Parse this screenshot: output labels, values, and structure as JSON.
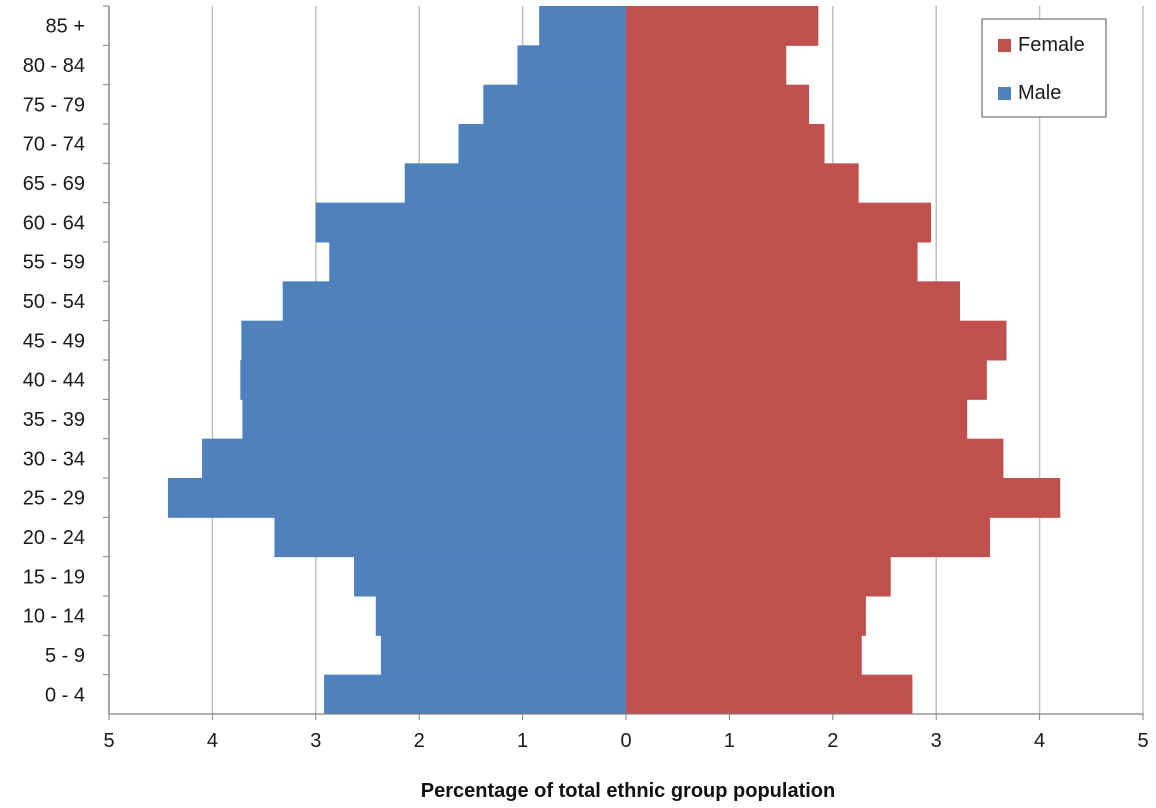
{
  "chart_data": {
    "type": "bar",
    "orientation": "horizontal",
    "title": "",
    "xlabel": "Percentage of total ethnic group population",
    "ylabel": "",
    "xlim": [
      -5,
      5
    ],
    "x_ticks": [
      -5,
      -4,
      -3,
      -2,
      -1,
      0,
      1,
      2,
      3,
      4,
      5
    ],
    "x_tick_labels": [
      "5",
      "4",
      "3",
      "2",
      "1",
      "0",
      "1",
      "2",
      "3",
      "4",
      "5"
    ],
    "grid": {
      "vertical": true,
      "horizontal": false
    },
    "legend_position": "top-right",
    "categories": [
      "0 - 4",
      "5 - 9",
      "10 - 14",
      "15 - 19",
      "20 - 24",
      "25 - 29",
      "30 - 34",
      "35 - 39",
      "40 - 44",
      "45 - 49",
      "50 - 54",
      "55 - 59",
      "60 - 64",
      "65 - 69",
      "70 - 74",
      "75 - 79",
      "80 - 84",
      "85 +"
    ],
    "series": [
      {
        "name": "Female",
        "color": "#C0504D",
        "values": [
          2.77,
          2.28,
          2.32,
          2.56,
          3.52,
          4.2,
          3.65,
          3.3,
          3.49,
          3.68,
          3.23,
          2.82,
          2.95,
          2.25,
          1.92,
          1.77,
          1.55,
          1.86
        ]
      },
      {
        "name": "Male",
        "color": "#4F81BD",
        "values": [
          2.92,
          2.37,
          2.42,
          2.63,
          3.4,
          4.43,
          4.1,
          3.71,
          3.73,
          3.72,
          3.32,
          2.87,
          3.0,
          2.14,
          1.62,
          1.38,
          1.05,
          0.84
        ]
      }
    ]
  }
}
